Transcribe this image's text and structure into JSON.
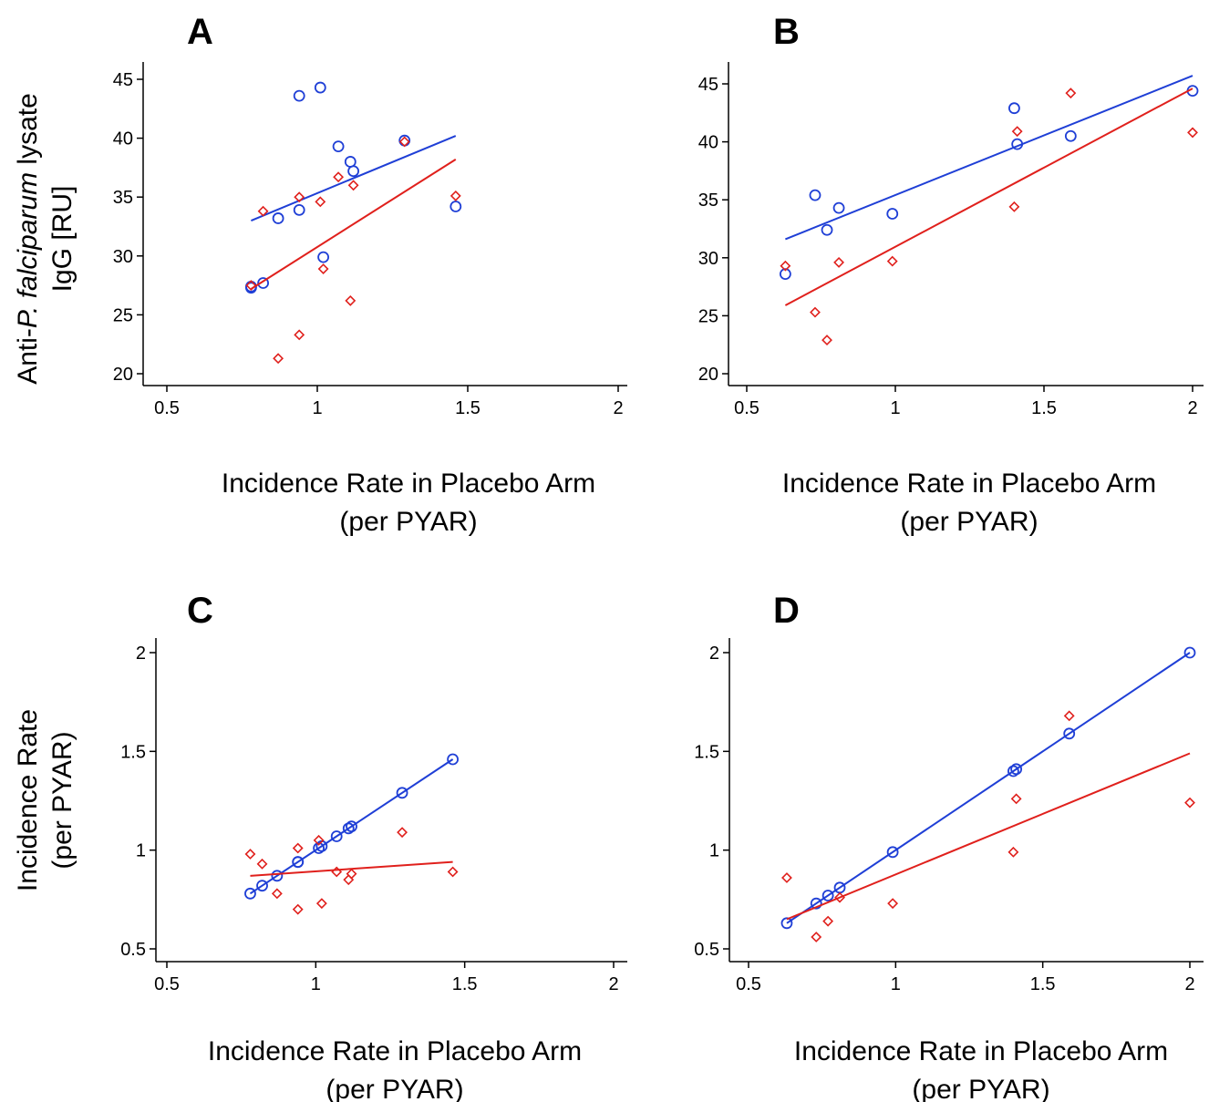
{
  "colors": {
    "blue": "#1f3fd6",
    "red": "#e0201c",
    "axis": "#000000"
  },
  "row_labels": {
    "top": {
      "line1_prefix": "Anti-",
      "line1_italic": "P. falciparum",
      "line1_suffix": " lysate",
      "line2": "IgG [RU]"
    },
    "bottom": {
      "line1": "Incidence Rate",
      "line2": "(per PYAR)"
    }
  },
  "chart_data": [
    {
      "panel": "A",
      "type": "scatter",
      "xlabel": "Incidence Rate in Placebo Arm",
      "xlabel2": "(per PYAR)",
      "xlim": [
        0.5,
        2
      ],
      "xticks": [
        "0.5",
        "1",
        "1.5",
        "2"
      ],
      "ylim": [
        20,
        45
      ],
      "yticks": [
        "20",
        "25",
        "30",
        "35",
        "40",
        "45"
      ],
      "grid": false,
      "series": [
        {
          "color": "blue",
          "marker": "circle",
          "points": [
            [
              0.78,
              27.3
            ],
            [
              0.78,
              27.4
            ],
            [
              0.82,
              27.7
            ],
            [
              0.87,
              33.2
            ],
            [
              0.94,
              33.9
            ],
            [
              0.94,
              43.6
            ],
            [
              1.01,
              44.3
            ],
            [
              1.02,
              29.9
            ],
            [
              1.07,
              39.3
            ],
            [
              1.11,
              38.0
            ],
            [
              1.12,
              37.2
            ],
            [
              1.29,
              39.8
            ],
            [
              1.46,
              34.2
            ]
          ],
          "fit": [
            [
              0.78,
              33.0
            ],
            [
              1.46,
              40.2
            ]
          ]
        },
        {
          "color": "red",
          "marker": "diamond",
          "points": [
            [
              0.78,
              27.5
            ],
            [
              0.82,
              33.8
            ],
            [
              0.87,
              21.3
            ],
            [
              0.94,
              35.0
            ],
            [
              0.94,
              23.3
            ],
            [
              1.01,
              34.6
            ],
            [
              1.02,
              28.9
            ],
            [
              1.07,
              36.7
            ],
            [
              1.11,
              26.2
            ],
            [
              1.12,
              36.0
            ],
            [
              1.29,
              39.7
            ],
            [
              1.46,
              35.1
            ]
          ],
          "fit": [
            [
              0.78,
              27.2
            ],
            [
              1.46,
              38.2
            ]
          ]
        }
      ]
    },
    {
      "panel": "B",
      "type": "scatter",
      "xlabel": "Incidence Rate in Placebo Arm",
      "xlabel2": "(per PYAR)",
      "xlim": [
        0.5,
        2
      ],
      "xticks": [
        "0.5",
        "1",
        "1.5",
        "2"
      ],
      "ylim": [
        20,
        45
      ],
      "yticks": [
        "20",
        "25",
        "30",
        "35",
        "40",
        "45"
      ],
      "grid": false,
      "series": [
        {
          "color": "blue",
          "marker": "circle",
          "points": [
            [
              0.63,
              28.6
            ],
            [
              0.73,
              35.4
            ],
            [
              0.77,
              32.4
            ],
            [
              0.81,
              34.3
            ],
            [
              0.99,
              33.8
            ],
            [
              1.4,
              42.9
            ],
            [
              1.41,
              39.8
            ],
            [
              1.59,
              40.5
            ],
            [
              2.0,
              44.4
            ]
          ],
          "fit": [
            [
              0.63,
              31.6
            ],
            [
              2.0,
              45.7
            ]
          ]
        },
        {
          "color": "red",
          "marker": "diamond",
          "points": [
            [
              0.63,
              29.3
            ],
            [
              0.73,
              25.3
            ],
            [
              0.77,
              22.9
            ],
            [
              0.81,
              29.6
            ],
            [
              0.99,
              29.7
            ],
            [
              1.4,
              34.4
            ],
            [
              1.41,
              40.9
            ],
            [
              1.59,
              44.2
            ],
            [
              2.0,
              40.8
            ]
          ],
          "fit": [
            [
              0.63,
              25.9
            ],
            [
              2.0,
              44.6
            ]
          ]
        }
      ]
    },
    {
      "panel": "C",
      "type": "scatter",
      "xlabel": "Incidence Rate in Placebo Arm",
      "xlabel2": "(per PYAR)",
      "xlim": [
        0.5,
        2
      ],
      "xticks": [
        "0.5",
        "1",
        "1.5",
        "2"
      ],
      "ylim": [
        0.5,
        2
      ],
      "yticks": [
        "0.5",
        "1",
        "1.5",
        "2"
      ],
      "grid": false,
      "series": [
        {
          "color": "blue",
          "marker": "circle",
          "points": [
            [
              0.78,
              0.78
            ],
            [
              0.82,
              0.82
            ],
            [
              0.87,
              0.87
            ],
            [
              0.94,
              0.94
            ],
            [
              0.94,
              0.94
            ],
            [
              1.01,
              1.01
            ],
            [
              1.02,
              1.02
            ],
            [
              1.07,
              1.07
            ],
            [
              1.11,
              1.11
            ],
            [
              1.12,
              1.12
            ],
            [
              1.29,
              1.29
            ],
            [
              1.46,
              1.46
            ]
          ],
          "fit": [
            [
              0.78,
              0.78
            ],
            [
              1.46,
              1.46
            ]
          ]
        },
        {
          "color": "red",
          "marker": "diamond",
          "points": [
            [
              0.78,
              0.98
            ],
            [
              0.82,
              0.93
            ],
            [
              0.87,
              0.78
            ],
            [
              0.94,
              1.01
            ],
            [
              0.94,
              0.7
            ],
            [
              1.01,
              1.05
            ],
            [
              1.02,
              0.73
            ],
            [
              1.07,
              0.89
            ],
            [
              1.11,
              0.85
            ],
            [
              1.12,
              0.88
            ],
            [
              1.29,
              1.09
            ],
            [
              1.46,
              0.89
            ]
          ],
          "fit": [
            [
              0.78,
              0.87
            ],
            [
              1.46,
              0.94
            ]
          ]
        }
      ]
    },
    {
      "panel": "D",
      "type": "scatter",
      "xlabel": "Incidence Rate in Placebo Arm",
      "xlabel2": "(per PYAR)",
      "xlim": [
        0.5,
        2
      ],
      "xticks": [
        "0.5",
        "1",
        "1.5",
        "2"
      ],
      "ylim": [
        0.5,
        2
      ],
      "yticks": [
        "0.5",
        "1",
        "1.5",
        "2"
      ],
      "grid": false,
      "series": [
        {
          "color": "blue",
          "marker": "circle",
          "points": [
            [
              0.63,
              0.63
            ],
            [
              0.73,
              0.73
            ],
            [
              0.77,
              0.77
            ],
            [
              0.81,
              0.81
            ],
            [
              0.99,
              0.99
            ],
            [
              1.4,
              1.4
            ],
            [
              1.41,
              1.41
            ],
            [
              1.59,
              1.59
            ],
            [
              2.0,
              2.0
            ]
          ],
          "fit": [
            [
              0.63,
              0.63
            ],
            [
              2.0,
              2.0
            ]
          ]
        },
        {
          "color": "red",
          "marker": "diamond",
          "points": [
            [
              0.63,
              0.86
            ],
            [
              0.73,
              0.56
            ],
            [
              0.77,
              0.64
            ],
            [
              0.81,
              0.76
            ],
            [
              0.99,
              0.73
            ],
            [
              1.4,
              0.99
            ],
            [
              1.41,
              1.26
            ],
            [
              1.59,
              1.68
            ],
            [
              2.0,
              1.24
            ]
          ],
          "fit": [
            [
              0.63,
              0.65
            ],
            [
              2.0,
              1.49
            ]
          ]
        }
      ]
    }
  ]
}
